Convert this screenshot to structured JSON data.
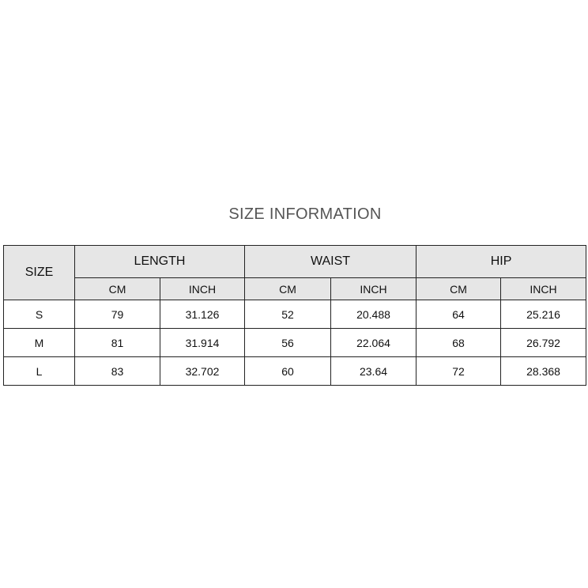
{
  "title": "SIZE INFORMATION",
  "header": {
    "size": "SIZE",
    "groups": [
      "LENGTH",
      "WAIST",
      "HIP"
    ],
    "units": [
      "CM",
      "INCH",
      "CM",
      "INCH",
      "CM",
      "INCH"
    ]
  },
  "rows": [
    [
      "S",
      "79",
      "31.126",
      "52",
      "20.488",
      "64",
      "25.216"
    ],
    [
      "M",
      "81",
      "31.914",
      "56",
      "22.064",
      "68",
      "26.792"
    ],
    [
      "L",
      "83",
      "32.702",
      "60",
      "23.64",
      "72",
      "28.368"
    ]
  ]
}
